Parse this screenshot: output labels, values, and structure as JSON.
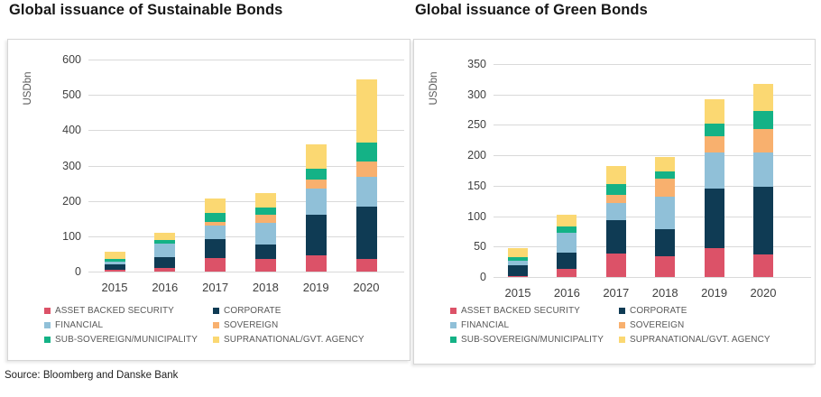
{
  "page": {
    "background": "#ffffff",
    "source_note": "Source: Bloomberg and Danske Bank"
  },
  "colors": {
    "gridline": "#d9d9d9",
    "panel_border": "#d6d6d6",
    "tick_text": "#404040",
    "axis_label_text": "#595959",
    "title_text": "#161616"
  },
  "chart_data": [
    {
      "type": "bar",
      "stacked": true,
      "title": "Global issuance of Sustainable Bonds",
      "ylabel": "USDbn",
      "xlabel": "",
      "ylim": [
        0,
        600
      ],
      "yticks": [
        0,
        100,
        200,
        300,
        400,
        500,
        600
      ],
      "grid": true,
      "legend_position": "bottom",
      "categories": [
        "2015",
        "2016",
        "2017",
        "2018",
        "2019",
        "2020"
      ],
      "series": [
        {
          "name": "ASSET BACKED SECURITY",
          "color": "#DC5268",
          "values": [
            5,
            11,
            38,
            36,
            45,
            35
          ]
        },
        {
          "name": "CORPORATE",
          "color": "#0F3B54",
          "values": [
            15,
            31,
            55,
            41,
            115,
            150
          ]
        },
        {
          "name": "FINANCIAL",
          "color": "#90C0D8",
          "values": [
            9,
            37,
            38,
            61,
            75,
            82
          ]
        },
        {
          "name": "SOVEREIGN",
          "color": "#F8B06E",
          "values": [
            0,
            0,
            10,
            24,
            25,
            45
          ]
        },
        {
          "name": "SUB-SOVEREIGN/MUNICIPALITY",
          "color": "#14B286",
          "values": [
            8,
            11,
            25,
            20,
            30,
            52
          ]
        },
        {
          "name": "SUPRANATIONAL/GVT. AGENCY",
          "color": "#FBD872",
          "values": [
            20,
            20,
            40,
            39,
            70,
            181
          ]
        }
      ],
      "totals": [
        57,
        110,
        206,
        221,
        360,
        545
      ]
    },
    {
      "type": "bar",
      "stacked": true,
      "title": "Global issuance of Green Bonds",
      "ylabel": "USDbn",
      "xlabel": "",
      "ylim": [
        0,
        350
      ],
      "yticks": [
        0,
        50,
        100,
        150,
        200,
        250,
        300,
        350
      ],
      "grid": true,
      "legend_position": "bottom",
      "categories": [
        "2015",
        "2016",
        "2017",
        "2018",
        "2019",
        "2020"
      ],
      "series": [
        {
          "name": "ASSET BACKED SECURITY",
          "color": "#DC5268",
          "values": [
            2,
            13,
            38,
            34,
            48,
            37
          ]
        },
        {
          "name": "CORPORATE",
          "color": "#0F3B54",
          "values": [
            17,
            27,
            55,
            45,
            98,
            112
          ]
        },
        {
          "name": "FINANCIAL",
          "color": "#90C0D8",
          "values": [
            7,
            33,
            29,
            53,
            58,
            56
          ]
        },
        {
          "name": "SOVEREIGN",
          "color": "#F8B06E",
          "values": [
            0,
            0,
            13,
            30,
            27,
            38
          ]
        },
        {
          "name": "SUB-SOVEREIGN/MUNICIPALITY",
          "color": "#14B286",
          "values": [
            7,
            10,
            18,
            11,
            21,
            30
          ]
        },
        {
          "name": "SUPRANATIONAL/GVT. AGENCY",
          "color": "#FBD872",
          "values": [
            15,
            20,
            30,
            25,
            40,
            45
          ]
        }
      ],
      "totals": [
        48,
        103,
        183,
        198,
        292,
        318
      ]
    }
  ]
}
